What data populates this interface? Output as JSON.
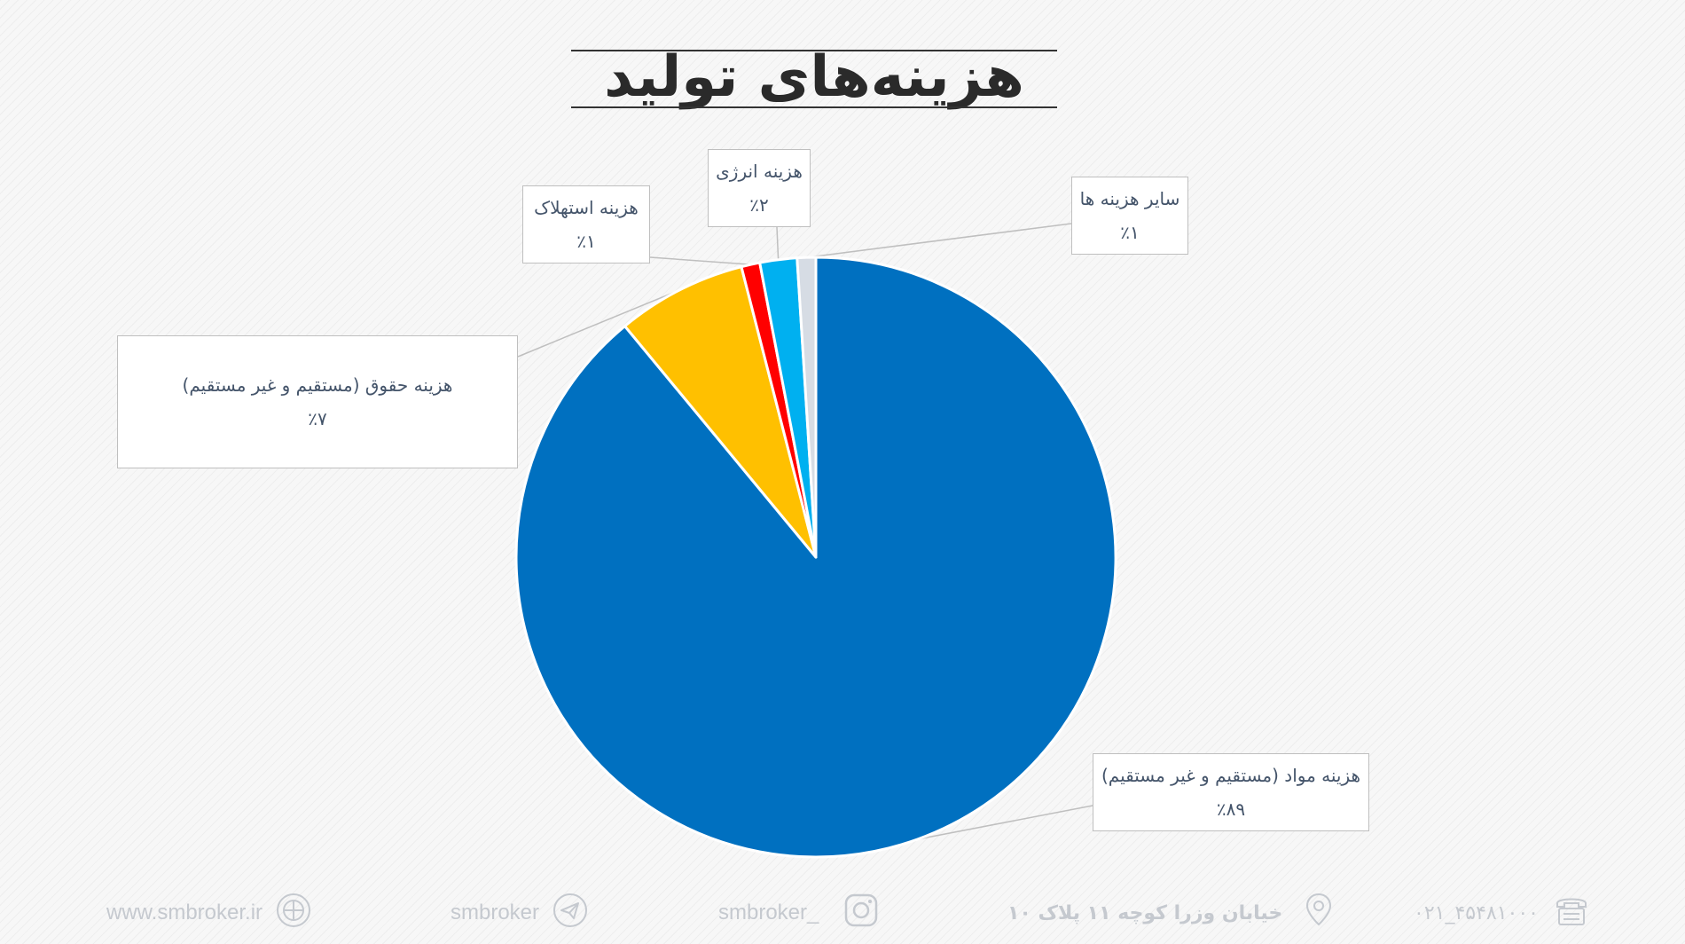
{
  "chart_data": {
    "type": "pie",
    "title": "هزینه‌های تولید",
    "slices": [
      {
        "label": "هزینه مواد (مستقیم و غیر مستقیم)",
        "value": 89,
        "pct_label": "٪۸۹",
        "color": "#0070c0"
      },
      {
        "label": "هزینه حقوق (مستقیم و غیر مستقیم)",
        "value": 7,
        "pct_label": "٪۷",
        "color": "#ffc000"
      },
      {
        "label": "هزینه استهلاک",
        "value": 1,
        "pct_label": "٪۱",
        "color": "#ff0000"
      },
      {
        "label": "هزینه انرژی",
        "value": 2,
        "pct_label": "٪۲",
        "color": "#00b0f0"
      },
      {
        "label": "سایر هزینه ها",
        "value": 1,
        "pct_label": "٪۱",
        "color": "#d6dce4"
      }
    ]
  },
  "footer": {
    "website": "www.smbroker.ir",
    "telegram": "smbroker",
    "instagram": "smbroker_",
    "address": "خیابان وزرا کوچه ۱۱ پلاک ۱۰",
    "phone": "۰۲۱_۴۵۴۸۱۰۰۰"
  }
}
